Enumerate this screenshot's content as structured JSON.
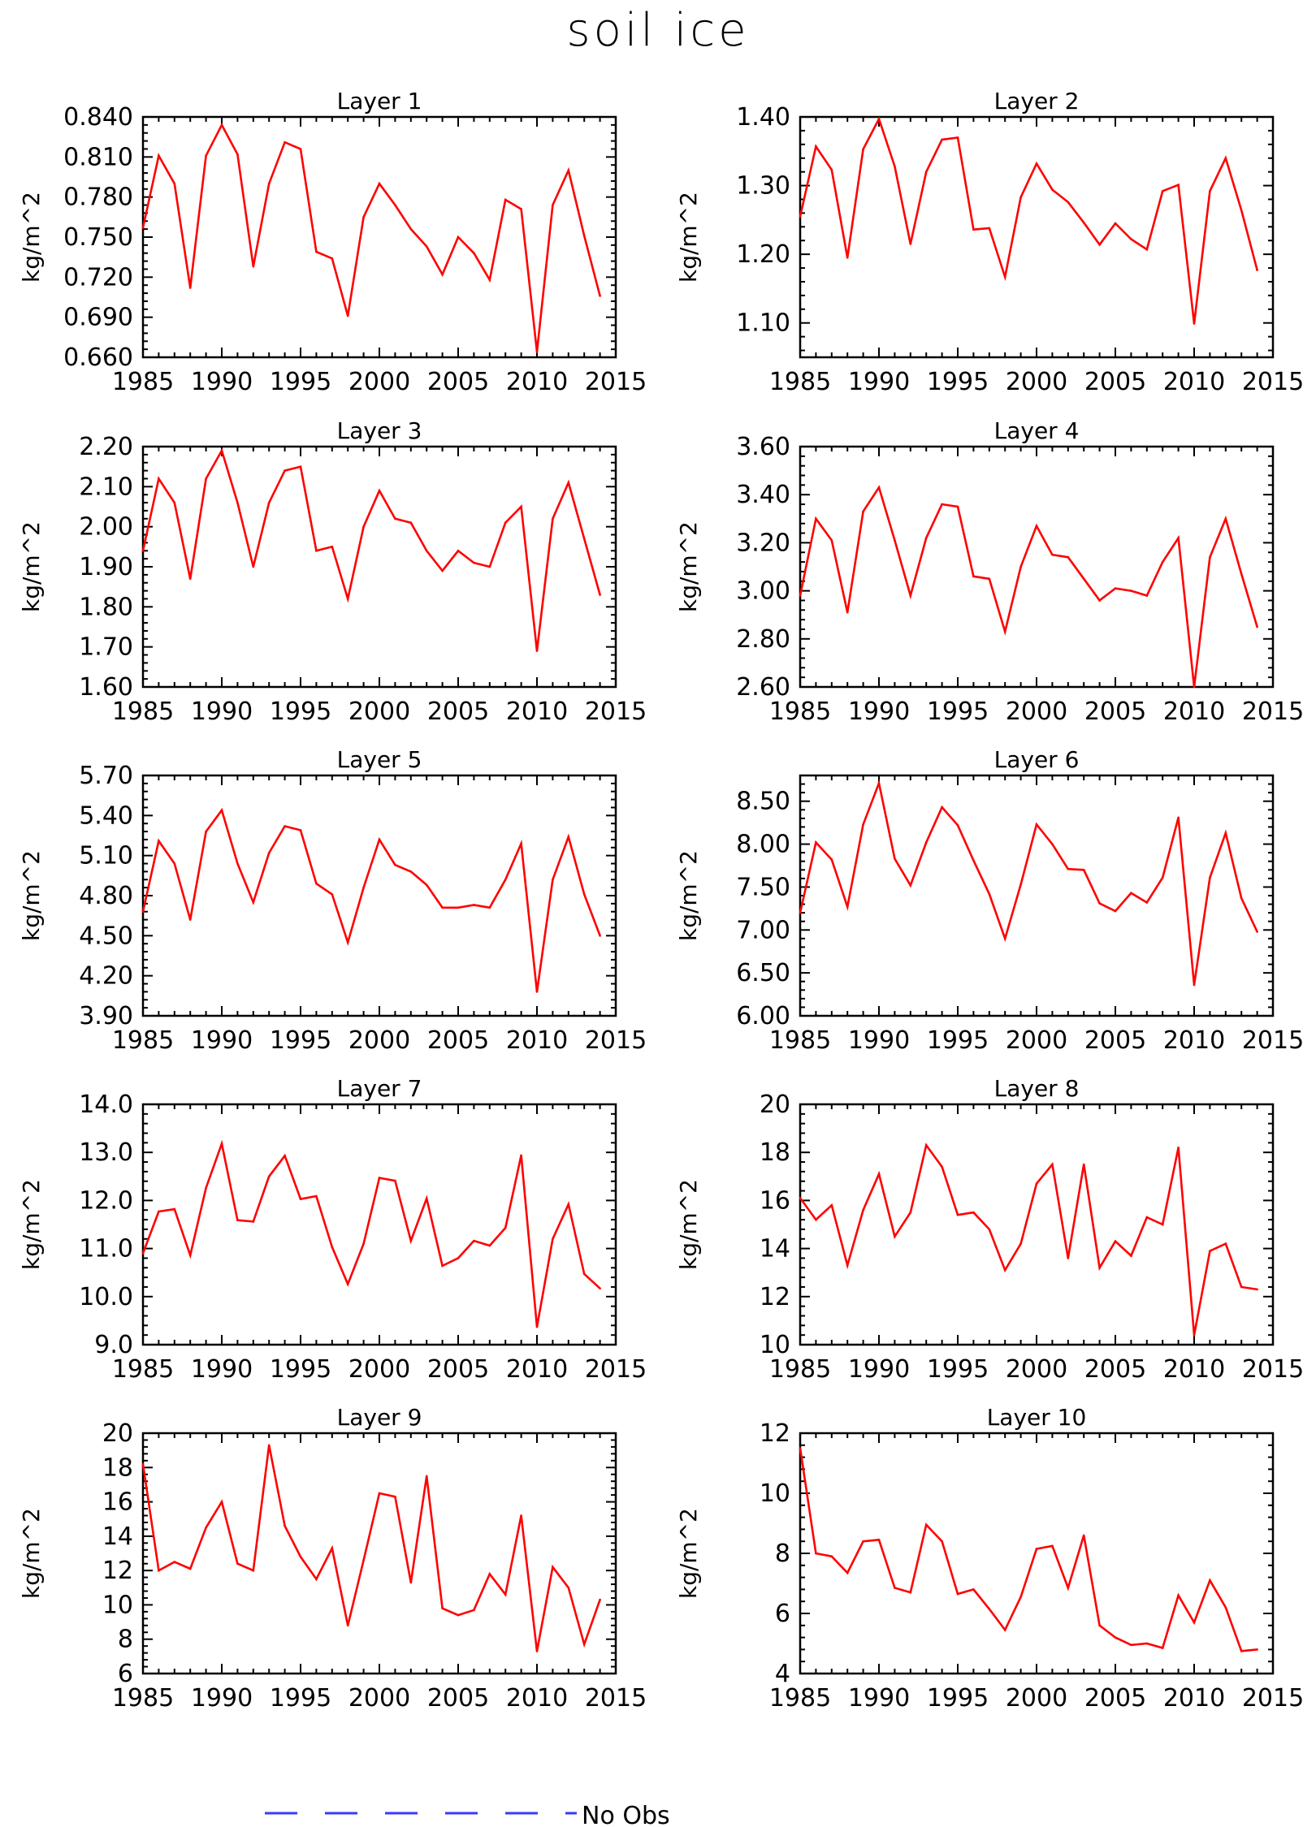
{
  "figure": {
    "title": "soil ice",
    "legend_label": "No Obs",
    "colors": {
      "series": "#ff0000",
      "legend": "#3a3aff",
      "axes": "#000000"
    }
  },
  "chart_data": [
    {
      "type": "line",
      "title": "Layer 1",
      "ylabel": "kg/m^2",
      "xlim": [
        1985,
        2015
      ],
      "xticks": [
        "1985",
        "1990",
        "1995",
        "2000",
        "2005",
        "2010",
        "2015"
      ],
      "ylim": [
        0.66,
        0.84
      ],
      "yticks": [
        "0.660",
        "0.690",
        "0.720",
        "0.750",
        "0.780",
        "0.810",
        "0.840"
      ],
      "series": [
        {
          "x": [
            1985,
            1986,
            1987,
            1988,
            1989,
            1990,
            1991,
            1992,
            1993,
            1994,
            1995,
            1996,
            1997,
            1998,
            1999,
            2000,
            2001,
            2002,
            2003,
            2004,
            2005,
            2006,
            2007,
            2008,
            2009,
            2010,
            2011,
            2012,
            2013,
            2014
          ],
          "values": [
            0.757,
            0.811,
            0.79,
            0.712,
            0.811,
            0.834,
            0.812,
            0.728,
            0.79,
            0.821,
            0.816,
            0.739,
            0.734,
            0.691,
            0.765,
            0.79,
            0.774,
            0.756,
            0.743,
            0.722,
            0.75,
            0.738,
            0.718,
            0.778,
            0.771,
            0.664,
            0.774,
            0.8,
            0.751,
            0.706
          ]
        }
      ]
    },
    {
      "type": "line",
      "title": "Layer 2",
      "ylabel": "kg/m^2",
      "xlim": [
        1985,
        2015
      ],
      "xticks": [
        "1985",
        "1990",
        "1995",
        "2000",
        "2005",
        "2010",
        "2015"
      ],
      "ylim": [
        1.05,
        1.4
      ],
      "yticks": [
        "1.10",
        "1.20",
        "1.30",
        "1.40"
      ],
      "series": [
        {
          "x": [
            1985,
            1986,
            1987,
            1988,
            1989,
            1990,
            1991,
            1992,
            1993,
            1994,
            1995,
            1996,
            1997,
            1998,
            1999,
            2000,
            2001,
            2002,
            2003,
            2004,
            2005,
            2006,
            2007,
            2008,
            2009,
            2010,
            2011,
            2012,
            2013,
            2014
          ],
          "values": [
            1.255,
            1.357,
            1.323,
            1.195,
            1.353,
            1.397,
            1.328,
            1.215,
            1.32,
            1.367,
            1.37,
            1.236,
            1.238,
            1.167,
            1.283,
            1.332,
            1.294,
            1.276,
            1.246,
            1.214,
            1.245,
            1.222,
            1.207,
            1.292,
            1.301,
            1.099,
            1.292,
            1.34,
            1.264,
            1.177
          ]
        }
      ]
    },
    {
      "type": "line",
      "title": "Layer 3",
      "ylabel": "kg/m^2",
      "xlim": [
        1985,
        2015
      ],
      "xticks": [
        "1985",
        "1990",
        "1995",
        "2000",
        "2005",
        "2010",
        "2015"
      ],
      "ylim": [
        1.6,
        2.2
      ],
      "yticks": [
        "1.60",
        "1.70",
        "1.80",
        "1.90",
        "2.00",
        "2.10",
        "2.20"
      ],
      "series": [
        {
          "x": [
            1985,
            1986,
            1987,
            1988,
            1989,
            1990,
            1991,
            1992,
            1993,
            1994,
            1995,
            1996,
            1997,
            1998,
            1999,
            2000,
            2001,
            2002,
            2003,
            2004,
            2005,
            2006,
            2007,
            2008,
            2009,
            2010,
            2011,
            2012,
            2013,
            2014
          ],
          "values": [
            1.94,
            2.12,
            2.06,
            1.87,
            2.12,
            2.19,
            2.06,
            1.9,
            2.06,
            2.14,
            2.15,
            1.94,
            1.95,
            1.82,
            2.0,
            2.09,
            2.02,
            2.01,
            1.94,
            1.89,
            1.94,
            1.91,
            1.9,
            2.01,
            2.05,
            1.69,
            2.02,
            2.11,
            1.97,
            1.83
          ]
        }
      ]
    },
    {
      "type": "line",
      "title": "Layer 4",
      "ylabel": "kg/m^2",
      "xlim": [
        1985,
        2015
      ],
      "xticks": [
        "1985",
        "1990",
        "1995",
        "2000",
        "2005",
        "2010",
        "2015"
      ],
      "ylim": [
        2.6,
        3.6
      ],
      "yticks": [
        "2.60",
        "2.80",
        "3.00",
        "3.20",
        "3.40",
        "3.60"
      ],
      "series": [
        {
          "x": [
            1985,
            1986,
            1987,
            1988,
            1989,
            1990,
            1991,
            1992,
            1993,
            1994,
            1995,
            1996,
            1997,
            1998,
            1999,
            2000,
            2001,
            2002,
            2003,
            2004,
            2005,
            2006,
            2007,
            2008,
            2009,
            2010,
            2011,
            2012,
            2013,
            2014
          ],
          "values": [
            2.98,
            3.3,
            3.21,
            2.91,
            3.33,
            3.43,
            3.21,
            2.98,
            3.22,
            3.36,
            3.35,
            3.06,
            3.05,
            2.83,
            3.1,
            3.27,
            3.15,
            3.14,
            3.05,
            2.96,
            3.01,
            3.0,
            2.98,
            3.12,
            3.22,
            2.6,
            3.14,
            3.3,
            3.07,
            2.85
          ]
        }
      ]
    },
    {
      "type": "line",
      "title": "Layer 5",
      "ylabel": "kg/m^2",
      "xlim": [
        1985,
        2015
      ],
      "xticks": [
        "1985",
        "1990",
        "1995",
        "2000",
        "2005",
        "2010",
        "2015"
      ],
      "ylim": [
        3.9,
        5.7
      ],
      "yticks": [
        "3.90",
        "4.20",
        "4.50",
        "4.80",
        "5.10",
        "5.40",
        "5.70"
      ],
      "series": [
        {
          "x": [
            1985,
            1986,
            1987,
            1988,
            1989,
            1990,
            1991,
            1992,
            1993,
            1994,
            1995,
            1996,
            1997,
            1998,
            1999,
            2000,
            2001,
            2002,
            2003,
            2004,
            2005,
            2006,
            2007,
            2008,
            2009,
            2010,
            2011,
            2012,
            2013,
            2014
          ],
          "values": [
            4.68,
            5.21,
            5.04,
            4.62,
            5.28,
            5.44,
            5.04,
            4.75,
            5.12,
            5.32,
            5.29,
            4.89,
            4.81,
            4.45,
            4.86,
            5.22,
            5.03,
            4.98,
            4.88,
            4.71,
            4.71,
            4.73,
            4.71,
            4.92,
            5.19,
            4.08,
            4.92,
            5.24,
            4.81,
            4.5
          ]
        }
      ]
    },
    {
      "type": "line",
      "title": "Layer 6",
      "ylabel": "kg/m^2",
      "xlim": [
        1985,
        2015
      ],
      "xticks": [
        "1985",
        "1990",
        "1995",
        "2000",
        "2005",
        "2010",
        "2015"
      ],
      "ylim": [
        6.0,
        8.8
      ],
      "yticks": [
        "6.00",
        "6.50",
        "7.00",
        "7.50",
        "8.00",
        "8.50"
      ],
      "series": [
        {
          "x": [
            1985,
            1986,
            1987,
            1988,
            1989,
            1990,
            1991,
            1992,
            1993,
            1994,
            1995,
            1996,
            1997,
            1998,
            1999,
            2000,
            2001,
            2002,
            2003,
            2004,
            2005,
            2006,
            2007,
            2008,
            2009,
            2010,
            2011,
            2012,
            2013,
            2014
          ],
          "values": [
            7.2,
            8.02,
            7.82,
            7.27,
            8.23,
            8.71,
            7.83,
            7.52,
            8.02,
            8.43,
            8.22,
            7.81,
            7.42,
            6.9,
            7.53,
            8.23,
            8.0,
            7.71,
            7.7,
            7.31,
            7.22,
            7.43,
            7.32,
            7.61,
            8.31,
            6.36,
            7.61,
            8.13,
            7.37,
            6.98
          ]
        }
      ]
    },
    {
      "type": "line",
      "title": "Layer 7",
      "ylabel": "kg/m^2",
      "xlim": [
        1985,
        2015
      ],
      "xticks": [
        "1985",
        "1990",
        "1995",
        "2000",
        "2005",
        "2010",
        "2015"
      ],
      "ylim": [
        9.0,
        14.0
      ],
      "yticks": [
        "9.0",
        "10.0",
        "11.0",
        "12.0",
        "13.0",
        "14.0"
      ],
      "series": [
        {
          "x": [
            1985,
            1986,
            1987,
            1988,
            1989,
            1990,
            1991,
            1992,
            1993,
            1994,
            1995,
            1996,
            1997,
            1998,
            1999,
            2000,
            2001,
            2002,
            2003,
            2004,
            2005,
            2006,
            2007,
            2008,
            2009,
            2010,
            2011,
            2012,
            2013,
            2014
          ],
          "values": [
            10.9,
            11.77,
            11.82,
            10.86,
            12.26,
            13.18,
            11.59,
            11.56,
            12.5,
            12.93,
            12.03,
            12.09,
            11.03,
            10.26,
            11.1,
            12.47,
            12.41,
            11.16,
            12.04,
            10.64,
            10.8,
            11.16,
            11.06,
            11.43,
            12.94,
            9.37,
            11.2,
            11.92,
            10.47,
            10.17
          ]
        }
      ]
    },
    {
      "type": "line",
      "title": "Layer 8",
      "ylabel": "kg/m^2",
      "xlim": [
        1985,
        2015
      ],
      "xticks": [
        "1985",
        "1990",
        "1995",
        "2000",
        "2005",
        "2010",
        "2015"
      ],
      "ylim": [
        10,
        20
      ],
      "yticks": [
        "10",
        "12",
        "14",
        "16",
        "18",
        "20"
      ],
      "series": [
        {
          "x": [
            1985,
            1986,
            1987,
            1988,
            1989,
            1990,
            1991,
            1992,
            1993,
            1994,
            1995,
            1996,
            1997,
            1998,
            1999,
            2000,
            2001,
            2002,
            2003,
            2004,
            2005,
            2006,
            2007,
            2008,
            2009,
            2010,
            2011,
            2012,
            2013,
            2014
          ],
          "values": [
            16.1,
            15.2,
            15.8,
            13.3,
            15.6,
            17.1,
            14.5,
            15.5,
            18.3,
            17.4,
            15.4,
            15.5,
            14.8,
            13.1,
            14.2,
            16.7,
            17.5,
            13.6,
            17.5,
            13.2,
            14.3,
            13.7,
            15.3,
            15.0,
            18.2,
            10.4,
            13.9,
            14.2,
            12.4,
            12.3
          ]
        }
      ]
    },
    {
      "type": "line",
      "title": "Layer 9",
      "ylabel": "kg/m^2",
      "xlim": [
        1985,
        2015
      ],
      "xticks": [
        "1985",
        "1990",
        "1995",
        "2000",
        "2005",
        "2010",
        "2015"
      ],
      "ylim": [
        6,
        20
      ],
      "yticks": [
        "6",
        "8",
        "10",
        "12",
        "14",
        "16",
        "18",
        "20"
      ],
      "series": [
        {
          "x": [
            1985,
            1986,
            1987,
            1988,
            1989,
            1990,
            1991,
            1992,
            1993,
            1994,
            1995,
            1996,
            1997,
            1998,
            1999,
            2000,
            2001,
            2002,
            2003,
            2004,
            2005,
            2006,
            2007,
            2008,
            2009,
            2010,
            2011,
            2012,
            2013,
            2014
          ],
          "values": [
            18.2,
            12.0,
            12.5,
            12.1,
            14.5,
            16.0,
            12.4,
            12.0,
            19.3,
            14.6,
            12.8,
            11.5,
            13.3,
            8.8,
            12.6,
            16.5,
            16.3,
            11.3,
            17.5,
            9.8,
            9.4,
            9.7,
            11.8,
            10.6,
            15.2,
            7.3,
            12.2,
            11.0,
            7.7,
            10.3
          ]
        }
      ]
    },
    {
      "type": "line",
      "title": "Layer 10",
      "ylabel": "kg/m^2",
      "xlim": [
        1985,
        2015
      ],
      "xticks": [
        "1985",
        "1990",
        "1995",
        "2000",
        "2005",
        "2010",
        "2015"
      ],
      "ylim": [
        4,
        12
      ],
      "yticks": [
        "4",
        "6",
        "8",
        "10",
        "12"
      ],
      "series": [
        {
          "x": [
            1985,
            1986,
            1987,
            1988,
            1989,
            1990,
            1991,
            1992,
            1993,
            1994,
            1995,
            1996,
            1997,
            1998,
            1999,
            2000,
            2001,
            2002,
            2003,
            2004,
            2005,
            2006,
            2007,
            2008,
            2009,
            2010,
            2011,
            2012,
            2013,
            2014
          ],
          "values": [
            11.5,
            8.0,
            7.9,
            7.35,
            8.4,
            8.45,
            6.85,
            6.7,
            8.95,
            8.4,
            6.65,
            6.8,
            6.15,
            5.45,
            6.55,
            8.15,
            8.25,
            6.85,
            8.6,
            5.6,
            5.2,
            4.95,
            5.0,
            4.85,
            6.6,
            5.7,
            7.1,
            6.2,
            4.75,
            4.8
          ]
        }
      ]
    }
  ]
}
